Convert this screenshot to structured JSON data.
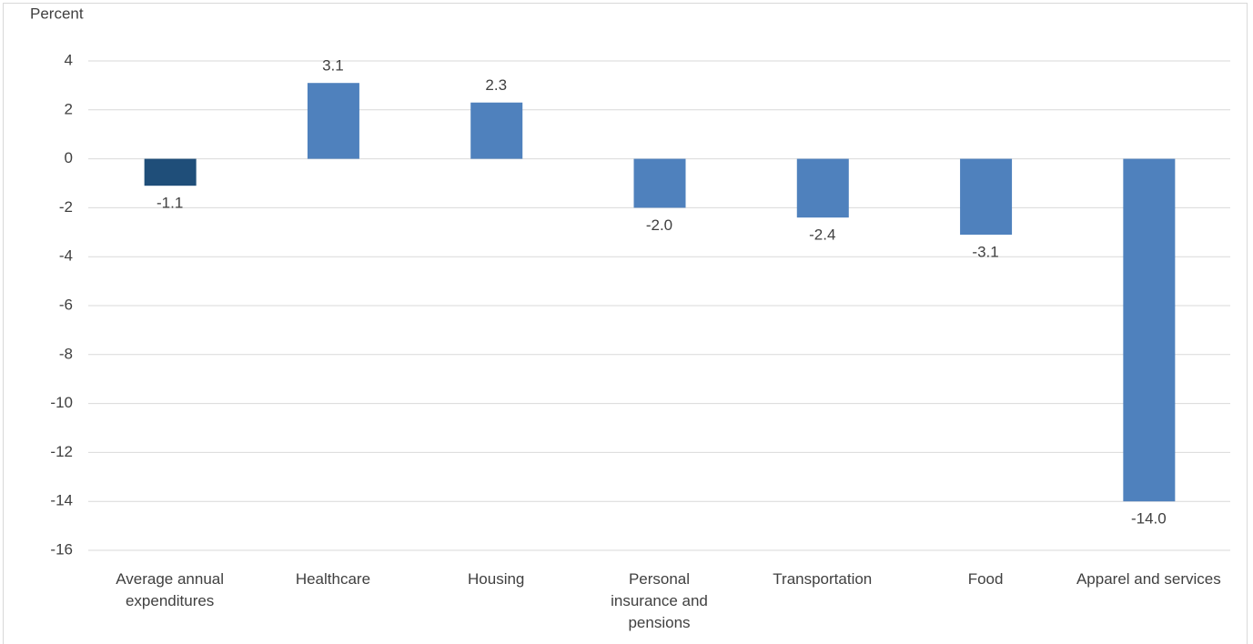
{
  "chart_data": {
    "type": "bar",
    "y_label": "Percent",
    "categories": [
      "Average annual expenditures",
      "Healthcare",
      "Housing",
      "Personal insurance and pensions",
      "Transportation",
      "Food",
      "Apparel and services"
    ],
    "values": [
      -1.1,
      3.1,
      2.3,
      -2.0,
      -2.4,
      -3.1,
      -14.0
    ],
    "value_labels": [
      "-1.1",
      "3.1",
      "2.3",
      "-2.0",
      "-2.4",
      "-3.1",
      "-14.0"
    ],
    "colors": [
      "#1f4e79",
      "#4f81bd",
      "#4f81bd",
      "#4f81bd",
      "#4f81bd",
      "#4f81bd",
      "#4f81bd"
    ],
    "ylim": [
      -16,
      4
    ],
    "yticks": [
      -16,
      -14,
      -12,
      -10,
      -8,
      -6,
      -4,
      -2,
      0,
      2,
      4
    ],
    "grid": true
  }
}
